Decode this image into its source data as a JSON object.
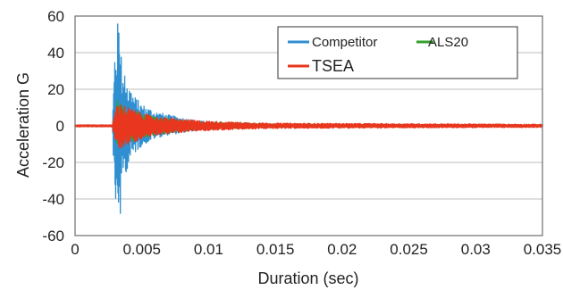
{
  "chart_data": {
    "type": "line",
    "title": "",
    "xlabel": "Duration (sec)",
    "ylabel": "Acceleration G",
    "xlim": [
      0,
      0.035
    ],
    "ylim": [
      -60,
      60
    ],
    "x_ticks": [
      0,
      0.005,
      0.01,
      0.015,
      0.02,
      0.025,
      0.03,
      0.035
    ],
    "x_tick_labels": [
      "0",
      "0.005",
      "0.01",
      "0.015",
      "0.02",
      "0.025",
      "0.03",
      "0.035"
    ],
    "y_ticks": [
      -60,
      -40,
      -20,
      0,
      20,
      40,
      60
    ],
    "y_tick_labels": [
      "-60",
      "-40",
      "-20",
      "0",
      "20",
      "40",
      "60"
    ],
    "grid": "horizontal",
    "legend_position": "top-right",
    "signal_onset_sec": 0.0028,
    "series": [
      {
        "name": "Competitor",
        "color": "#2f8fd0",
        "envelope_t": [
          0,
          0.0028,
          0.003,
          0.0032,
          0.0034,
          0.0036,
          0.0038,
          0.004,
          0.0045,
          0.005,
          0.006,
          0.007,
          0.008,
          0.009,
          0.01,
          0.012,
          0.015,
          0.02,
          0.035
        ],
        "envelope_max": [
          0.4,
          0.4,
          50,
          57,
          60,
          25,
          31,
          24,
          16,
          12,
          8,
          6,
          4.5,
          3,
          2.2,
          1.2,
          0.8,
          0.6,
          0.5
        ],
        "envelope_min": [
          -0.4,
          -0.4,
          -51,
          -45,
          -52,
          -28,
          -26,
          -22,
          -15,
          -11,
          -7,
          -5,
          -4,
          -2.5,
          -2,
          -1.2,
          -0.8,
          -0.6,
          -0.5
        ]
      },
      {
        "name": "ALS20",
        "color": "#33a02c",
        "envelope_t": [
          0,
          0.0028,
          0.0032,
          0.004,
          0.006,
          0.008,
          0.01,
          0.015,
          0.035
        ],
        "envelope_max": [
          0.3,
          0.3,
          14,
          9,
          5,
          3,
          2,
          1,
          0.5
        ],
        "envelope_min": [
          -0.3,
          -0.3,
          -12,
          -9,
          -5,
          -3,
          -2,
          -1,
          -0.5
        ]
      },
      {
        "name": "TSEA",
        "color": "#e8371e",
        "envelope_t": [
          0,
          0.0028,
          0.0031,
          0.0035,
          0.004,
          0.005,
          0.006,
          0.008,
          0.01,
          0.012,
          0.015,
          0.035
        ],
        "envelope_max": [
          0.5,
          0.5,
          12,
          12,
          10,
          7,
          5,
          3.5,
          2.5,
          2,
          1.4,
          0.8
        ],
        "envelope_min": [
          -0.5,
          -0.5,
          -13,
          -12,
          -10,
          -7,
          -5,
          -3.5,
          -2.5,
          -2,
          -1.4,
          -0.8
        ]
      }
    ]
  },
  "legend": {
    "items": [
      {
        "label": "Competitor",
        "color": "#2f8fd0"
      },
      {
        "label": "ALS20",
        "color": "#33a02c"
      },
      {
        "label": "TSEA",
        "color": "#e8371e"
      }
    ]
  }
}
